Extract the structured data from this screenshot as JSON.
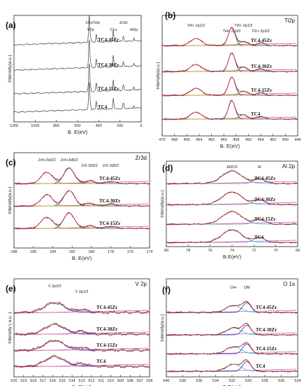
{
  "chart_data": [
    {
      "panel": "(a)",
      "type": "line",
      "xlabel": "B. E(eV)",
      "ylabel": "Intensity(a.u.)",
      "xlim": [
        1300,
        0
      ],
      "xticks": [
        "1200",
        "1000",
        "800",
        "600",
        "400",
        "200",
        "0"
      ],
      "series": [
        {
          "name": "TC4-45Zr"
        },
        {
          "name": "TC4-30Zr"
        },
        {
          "name": "TC4-15Zr"
        },
        {
          "name": "TC4"
        }
      ],
      "annotations": [
        "O1s",
        "V2p",
        "Ti2p",
        "C1s",
        "Zr3d",
        "Al2p"
      ],
      "peaks_ev": [
        531,
        516,
        459,
        285,
        182,
        74
      ]
    },
    {
      "panel": "(b)",
      "type": "line",
      "header": "Ti2p",
      "xlabel": "B. E(eV)",
      "ylabel": "Intensity(a.u.)",
      "xlim": [
        470,
        448
      ],
      "xticks": [
        "470",
        "468",
        "466",
        "464",
        "462",
        "460",
        "458",
        "456",
        "454",
        "452",
        "450",
        "448"
      ],
      "series": [
        {
          "name": "TC4-45Zr"
        },
        {
          "name": "TC4-30Zr"
        },
        {
          "name": "TC4-15Zr"
        },
        {
          "name": "TC4"
        }
      ],
      "annotations": [
        "Ti4+ 2p1/2",
        "Ti4+ 2p3/2",
        "Ti3+ 2p1/2",
        "Ti2+ 2p3/2"
      ],
      "peaks_ev": [
        464.5,
        458.7,
        456.8,
        454.0
      ]
    },
    {
      "panel": "(c)",
      "type": "line",
      "header": "Zr3d",
      "xlabel": "B. E(eV)",
      "ylabel": "Intensity(a.u.)",
      "xlim": [
        188,
        174
      ],
      "xticks": [
        "188",
        "186",
        "184",
        "182",
        "180",
        "178",
        "176",
        "174"
      ],
      "series": [
        {
          "name": "TC4-45Zr"
        },
        {
          "name": "TC4-30Zr"
        },
        {
          "name": "TC4-15Zr"
        }
      ],
      "annotations": [
        "Zr4+3d3/2",
        "Zr4+3d5/2",
        "Zr0 3d3/2",
        "Zr0 3d5/2"
      ],
      "peaks_ev": [
        184.6,
        182.3,
        180.2,
        178.0
      ]
    },
    {
      "panel": "(d)",
      "type": "line",
      "header": "Al 2p",
      "xlabel": "B.E(eV)",
      "ylabel": "Intensity(a.u.)",
      "xlim": [
        80,
        68
      ],
      "xticks": [
        "80",
        "78",
        "76",
        "74",
        "72",
        "70",
        "68"
      ],
      "series": [
        {
          "name": "TC4-45Zr"
        },
        {
          "name": "TC4-30Zr"
        },
        {
          "name": "TC4-15Zr"
        },
        {
          "name": "TC4"
        }
      ],
      "annotations": [
        "Al2O3",
        "Al"
      ],
      "peaks_ev": [
        74.0,
        71.5
      ]
    },
    {
      "panel": "(e)",
      "type": "line",
      "header": "V 2p",
      "xlabel": "B. E(eV)",
      "ylabel": "Intensity  ( a.u. )",
      "xlim": [
        520,
        506
      ],
      "xticks": [
        "520",
        "519",
        "518",
        "517",
        "516",
        "515",
        "514",
        "513",
        "512",
        "511",
        "510",
        "509",
        "508",
        "507",
        "506"
      ],
      "series": [
        {
          "name": "TC4-45Zr"
        },
        {
          "name": "TC4-30Zr"
        },
        {
          "name": "TC4-15Zr"
        },
        {
          "name": "TC4"
        }
      ],
      "annotations": [
        "V 2p3/2",
        "V 2p1/2"
      ],
      "peaks_ev": [
        515.8,
        513.0
      ]
    },
    {
      "panel": "(f)",
      "type": "line",
      "header": "O 1s",
      "xlabel": "B.E(eV)",
      "ylabel": "Intensity(a.u.)",
      "xlim": [
        540,
        524
      ],
      "xticks": [
        "540",
        "538",
        "536",
        "534",
        "532",
        "530",
        "528",
        "526",
        "524"
      ],
      "series": [
        {
          "name": "TC4-45Zr"
        },
        {
          "name": "TC4-30Zr"
        },
        {
          "name": "TC4-15Zr"
        },
        {
          "name": "TC4"
        }
      ],
      "annotations": [
        "OH-",
        "OM"
      ],
      "peaks_ev": [
        531.8,
        530.2
      ]
    }
  ],
  "colors": {
    "raw": "#222222",
    "envelope": "#e0303a",
    "background": "#c040c8",
    "fit_blue": "#2030a0",
    "fit_cyan": "#30c8d8",
    "fit_green": "#40a040",
    "fit_gray": "#888888",
    "fit_yellow": "#d8b020",
    "fit_pink": "#e060a0"
  }
}
